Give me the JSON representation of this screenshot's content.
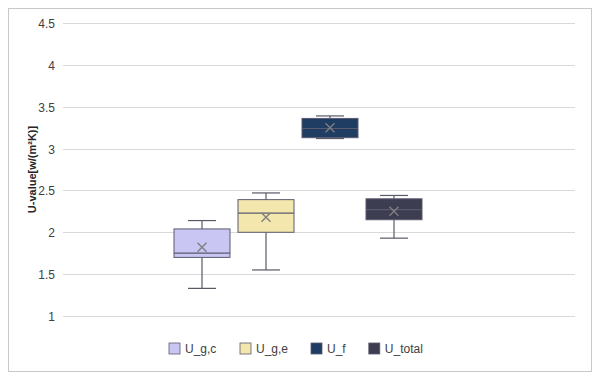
{
  "chart_data": {
    "type": "box",
    "y_label": "U-value[w/(m²K)]",
    "ylim": [
      1,
      4.5
    ],
    "yticks": [
      1,
      1.5,
      2,
      2.5,
      3,
      3.5,
      4,
      4.5
    ],
    "grid": true,
    "legend": "bottom",
    "series": [
      {
        "name": "U_g,c",
        "color": "#c9c6f3",
        "min": 1.33,
        "q1": 1.7,
        "median": 1.75,
        "q3": 2.04,
        "max": 2.14,
        "mean": 1.82
      },
      {
        "name": "U_g,e",
        "color": "#f4e7ad",
        "min": 1.55,
        "q1": 2.0,
        "median": 2.23,
        "q3": 2.39,
        "max": 2.47,
        "mean": 2.18
      },
      {
        "name": "U_f",
        "color": "#1f3c63",
        "min": 3.12,
        "q1": 3.13,
        "median": 3.24,
        "q3": 3.36,
        "max": 3.39,
        "mean": 3.25
      },
      {
        "name": "U_total",
        "color": "#3d3d52",
        "min": 1.93,
        "q1": 2.15,
        "median": 2.27,
        "q3": 2.4,
        "max": 2.44,
        "mean": 2.25
      }
    ]
  }
}
